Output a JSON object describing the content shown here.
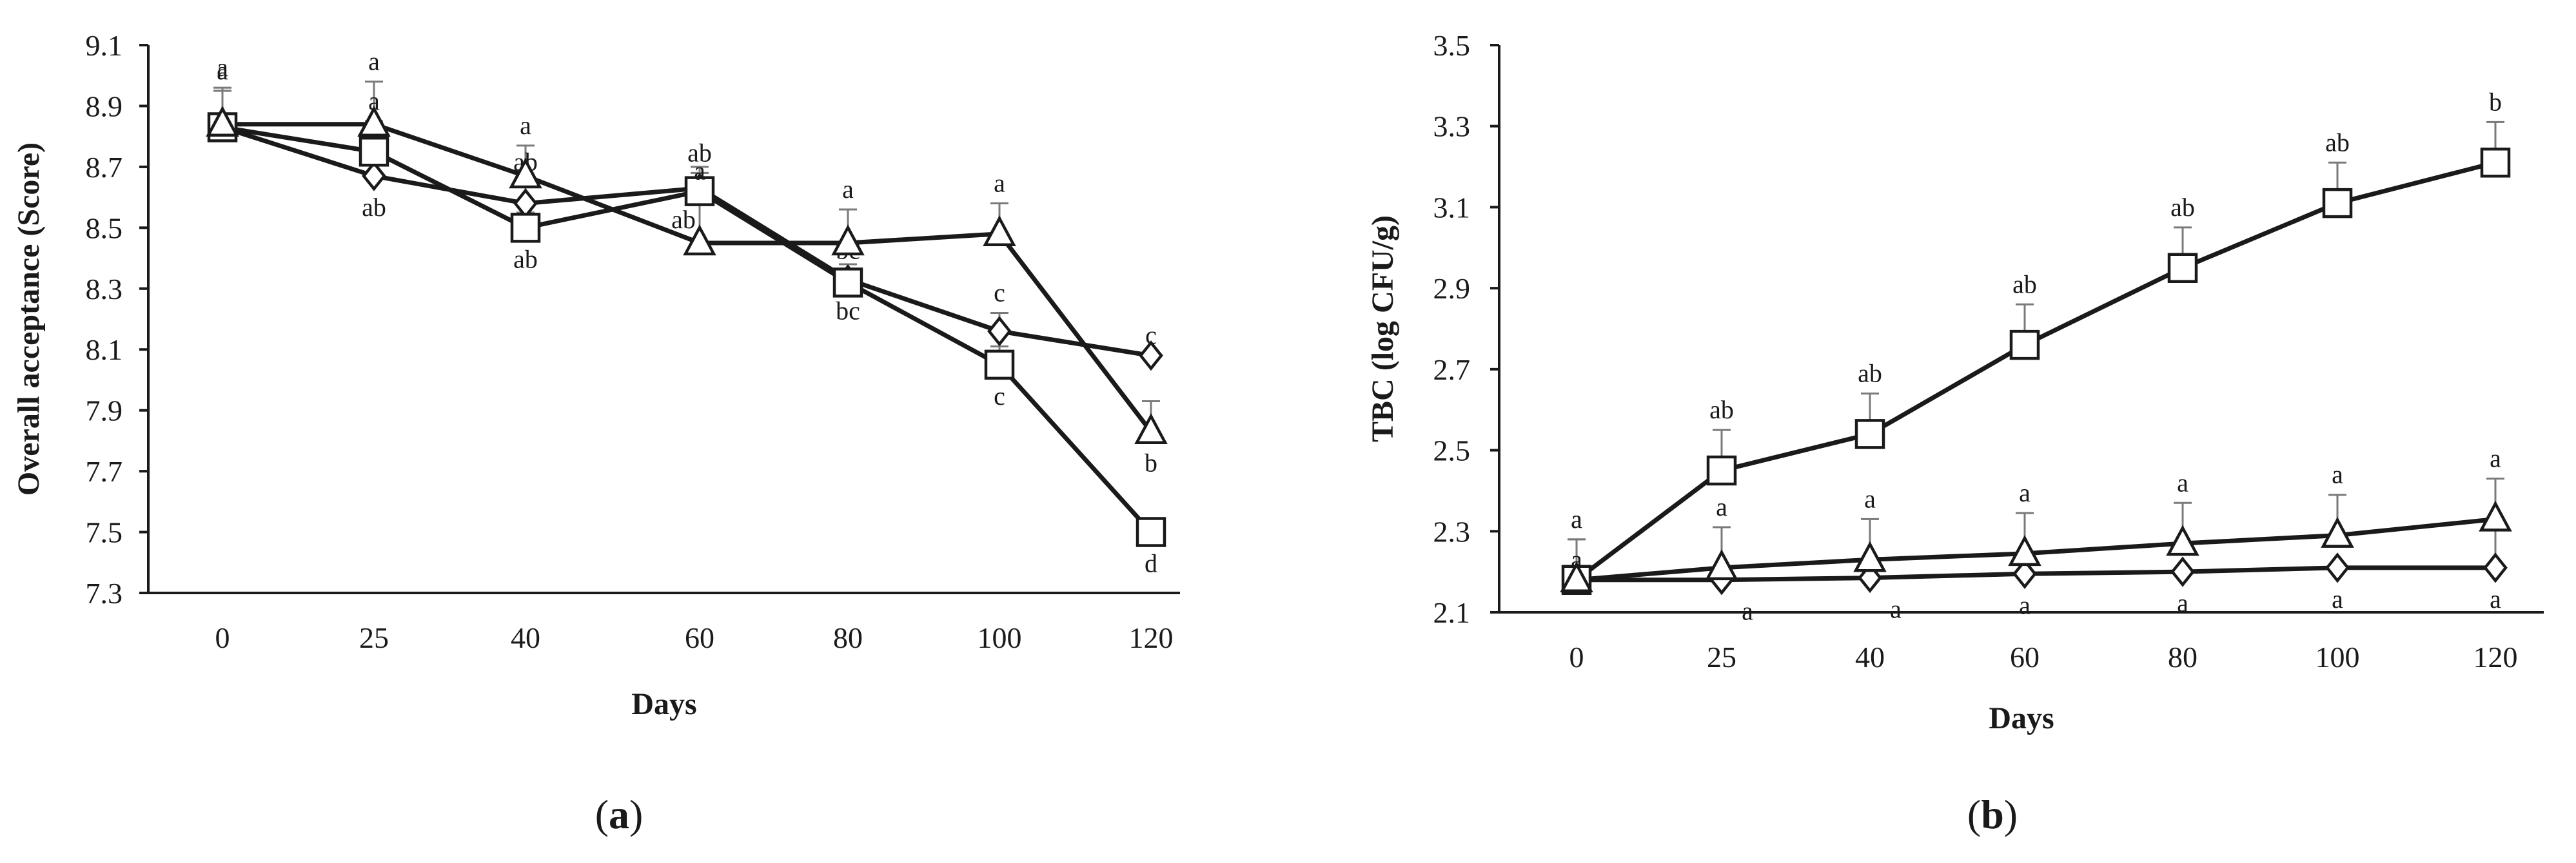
{
  "figure_labels": [
    {
      "open": "(",
      "letter": "a",
      "close": ")"
    },
    {
      "open": "(",
      "letter": "b",
      "close": ")"
    }
  ],
  "chart_data": [
    {
      "type": "line",
      "xlabel": "Days",
      "ylabel": "Overall acceptance (Score)",
      "categories": [
        "0",
        "25",
        "40",
        "60",
        "80",
        "100",
        "120"
      ],
      "ylim": [
        7.3,
        9.1
      ],
      "yticks": [
        "7.3",
        "7.5",
        "7.7",
        "7.9",
        "8.1",
        "8.3",
        "8.5",
        "8.7",
        "8.9",
        "9.1"
      ],
      "series": [
        {
          "marker": "diamond",
          "values": [
            8.83,
            8.67,
            8.58,
            8.63,
            8.33,
            8.16,
            8.08
          ],
          "errors": [
            0.12,
            0.06,
            0.07,
            0.07,
            0.05,
            0.06,
            0
          ],
          "labels": [
            "a",
            "ab",
            "ab",
            "ab",
            "bc",
            "c",
            "c"
          ]
        },
        {
          "marker": "square",
          "values": [
            8.83,
            8.75,
            8.5,
            8.62,
            8.32,
            8.05,
            7.5
          ],
          "errors": [
            0.12,
            0.1,
            0.05,
            0.06,
            0.04,
            0.06,
            0
          ],
          "labels": [
            "a",
            "a",
            "ab",
            "ab",
            "bc",
            "c",
            "d"
          ]
        },
        {
          "marker": "triangle",
          "values": [
            8.84,
            8.84,
            8.67,
            8.45,
            8.45,
            8.48,
            7.83
          ],
          "errors": [
            0.12,
            0.14,
            0.1,
            0.17,
            0.11,
            0.1,
            0.1
          ],
          "labels": [
            "a",
            "a",
            "a",
            "a",
            "a",
            "a",
            "b"
          ]
        }
      ]
    },
    {
      "type": "line",
      "xlabel": "Days",
      "ylabel": "TBC (log CFU/g)",
      "categories": [
        "0",
        "25",
        "40",
        "60",
        "80",
        "100",
        "120"
      ],
      "ylim": [
        2.1,
        3.5
      ],
      "yticks": [
        "2.1",
        "2.3",
        "2.5",
        "2.7",
        "2.9",
        "3.1",
        "3.3",
        "3.5"
      ],
      "series": [
        {
          "marker": "diamond",
          "values": [
            2.18,
            2.18,
            2.185,
            2.195,
            2.2,
            2.21,
            2.21
          ],
          "errors": [
            0,
            0,
            0,
            0,
            0,
            0,
            0.1
          ],
          "labels": [
            "a",
            "a",
            "a",
            "a",
            "a",
            "a",
            "a"
          ]
        },
        {
          "marker": "square",
          "values": [
            2.18,
            2.45,
            2.54,
            2.76,
            2.95,
            3.11,
            3.21
          ],
          "errors": [
            0.1,
            0.1,
            0.1,
            0.1,
            0.1,
            0.1,
            0.1
          ],
          "labels": [
            "a",
            "ab",
            "ab",
            "ab",
            "ab",
            "ab",
            "b"
          ]
        },
        {
          "marker": "triangle",
          "values": [
            2.18,
            2.21,
            2.23,
            2.245,
            2.27,
            2.29,
            2.33
          ],
          "errors": [
            0.1,
            0.1,
            0.1,
            0.1,
            0.1,
            0.1,
            0.1
          ],
          "labels": [
            "a",
            "a",
            "a",
            "a",
            "a",
            "a",
            "a"
          ]
        }
      ]
    }
  ]
}
